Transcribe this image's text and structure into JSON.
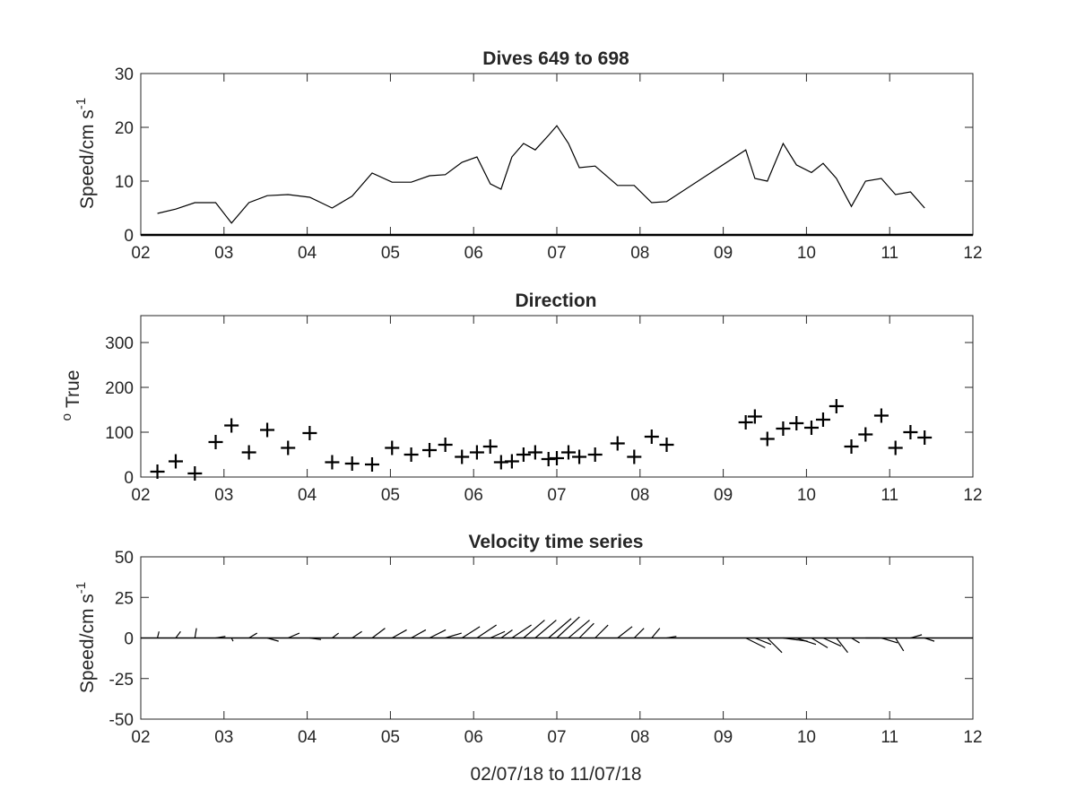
{
  "chart_data": [
    {
      "type": "line",
      "title": "Dives 649 to 698",
      "xlabel": "",
      "ylabel": "Speed/cm s",
      "ylabel_superscript": "-1",
      "xlim": [
        2,
        12
      ],
      "ylim": [
        0,
        30
      ],
      "xticks": [
        2,
        3,
        4,
        5,
        6,
        7,
        8,
        9,
        10,
        11,
        12
      ],
      "xtick_labels": [
        "02",
        "03",
        "04",
        "05",
        "06",
        "07",
        "08",
        "09",
        "10",
        "11",
        "12"
      ],
      "yticks": [
        0,
        10,
        20,
        30
      ],
      "ytick_labels": [
        "0",
        "10",
        "20",
        "30"
      ],
      "grid": false,
      "color": "#000000",
      "series": [
        {
          "x": [
            2.2,
            2.42,
            2.65,
            2.9,
            3.09,
            3.3,
            3.52,
            3.77,
            4.03,
            4.3,
            4.54,
            4.78,
            5.02,
            5.25,
            5.47,
            5.66,
            5.86,
            6.04,
            6.2,
            6.33,
            6.46,
            6.6,
            6.74,
            6.9,
            7.0,
            7.14,
            7.27,
            7.46,
            7.73,
            7.93,
            8.14,
            8.32,
            9.27,
            9.38,
            9.53,
            9.72,
            9.88,
            10.06,
            10.2,
            10.36,
            10.54,
            10.71,
            10.9,
            11.07,
            11.25,
            11.42
          ],
          "y": [
            4,
            4.8,
            6,
            6,
            2.2,
            6,
            7.3,
            7.5,
            7,
            5,
            7.2,
            11.5,
            9.8,
            9.8,
            11,
            11.2,
            13.5,
            14.5,
            9.5,
            8.5,
            14.5,
            17,
            15.8,
            18.5,
            20.3,
            17,
            12.5,
            12.8,
            9.2,
            9.2,
            6,
            6.2,
            15.8,
            10.5,
            10,
            17,
            13,
            11.6,
            13.3,
            10.5,
            5.3,
            10,
            10.5,
            7.5,
            8,
            5
          ]
        }
      ]
    },
    {
      "type": "scatter",
      "title": "Direction",
      "xlabel": "",
      "ylabel": "True",
      "ylabel_prefix_superscript": "o",
      "xlim": [
        2,
        12
      ],
      "ylim": [
        0,
        360
      ],
      "xticks": [
        2,
        3,
        4,
        5,
        6,
        7,
        8,
        9,
        10,
        11,
        12
      ],
      "xtick_labels": [
        "02",
        "03",
        "04",
        "05",
        "06",
        "07",
        "08",
        "09",
        "10",
        "11",
        "12"
      ],
      "yticks": [
        0,
        100,
        200,
        300
      ],
      "ytick_labels": [
        "0",
        "100",
        "200",
        "300"
      ],
      "grid": false,
      "marker": "+",
      "color": "#000000",
      "series": [
        {
          "x": [
            2.2,
            2.42,
            2.65,
            2.9,
            3.09,
            3.3,
            3.52,
            3.77,
            4.03,
            4.3,
            4.54,
            4.78,
            5.02,
            5.25,
            5.47,
            5.66,
            5.86,
            6.04,
            6.2,
            6.33,
            6.46,
            6.6,
            6.74,
            6.9,
            7.0,
            7.14,
            7.27,
            7.46,
            7.73,
            7.93,
            8.14,
            8.32,
            9.27,
            9.38,
            9.53,
            9.72,
            9.88,
            10.06,
            10.2,
            10.36,
            10.54,
            10.71,
            10.9,
            11.07,
            11.25,
            11.42
          ],
          "y": [
            12,
            35,
            8,
            78,
            115,
            55,
            105,
            65,
            98,
            33,
            30,
            28,
            65,
            50,
            60,
            72,
            45,
            55,
            68,
            33,
            35,
            50,
            55,
            40,
            42,
            55,
            45,
            50,
            75,
            45,
            90,
            72,
            122,
            135,
            85,
            108,
            120,
            110,
            128,
            158,
            68,
            95,
            137,
            65,
            100,
            88
          ]
        }
      ]
    },
    {
      "type": "quiver",
      "title": "Velocity time series",
      "xlabel": "02/07/18 to 11/07/18",
      "ylabel": "Speed/cm s",
      "ylabel_superscript": "-1",
      "xlim": [
        2,
        12
      ],
      "ylim": [
        -50,
        50
      ],
      "xticks": [
        2,
        3,
        4,
        5,
        6,
        7,
        8,
        9,
        10,
        11,
        12
      ],
      "xtick_labels": [
        "02",
        "03",
        "04",
        "05",
        "06",
        "07",
        "08",
        "09",
        "10",
        "11",
        "12"
      ],
      "yticks": [
        -50,
        -25,
        0,
        25,
        50
      ],
      "ytick_labels": [
        "-50",
        "-25",
        "0",
        "25",
        "50"
      ],
      "grid": false,
      "color": "#000000",
      "sticks": [
        {
          "x": 2.2,
          "u": 1,
          "v": 4
        },
        {
          "x": 2.42,
          "u": 3,
          "v": 4
        },
        {
          "x": 2.65,
          "u": 1,
          "v": 6
        },
        {
          "x": 2.9,
          "u": 6,
          "v": 1
        },
        {
          "x": 3.09,
          "u": 1,
          "v": -2
        },
        {
          "x": 3.3,
          "u": 5,
          "v": 3
        },
        {
          "x": 3.52,
          "u": 7,
          "v": -2
        },
        {
          "x": 3.77,
          "u": 7,
          "v": 3
        },
        {
          "x": 4.03,
          "u": 7,
          "v": -1
        },
        {
          "x": 4.3,
          "u": 4,
          "v": 3
        },
        {
          "x": 4.54,
          "u": 6,
          "v": 4
        },
        {
          "x": 4.78,
          "u": 8,
          "v": 6
        },
        {
          "x": 5.02,
          "u": 9,
          "v": 5
        },
        {
          "x": 5.25,
          "u": 9,
          "v": 5
        },
        {
          "x": 5.47,
          "u": 10,
          "v": 5
        },
        {
          "x": 5.66,
          "u": 10,
          "v": 3
        },
        {
          "x": 5.86,
          "u": 11,
          "v": 7
        },
        {
          "x": 6.04,
          "u": 12,
          "v": 8
        },
        {
          "x": 6.2,
          "u": 9,
          "v": 4
        },
        {
          "x": 6.33,
          "u": 7,
          "v": 5
        },
        {
          "x": 6.46,
          "u": 12,
          "v": 8
        },
        {
          "x": 6.6,
          "u": 13,
          "v": 11
        },
        {
          "x": 6.74,
          "u": 13,
          "v": 11
        },
        {
          "x": 6.9,
          "u": 14,
          "v": 12
        },
        {
          "x": 7.0,
          "u": 14,
          "v": 13
        },
        {
          "x": 7.14,
          "u": 13,
          "v": 11
        },
        {
          "x": 7.27,
          "u": 9,
          "v": 9
        },
        {
          "x": 7.46,
          "u": 8,
          "v": 8
        },
        {
          "x": 7.73,
          "u": 9,
          "v": 7
        },
        {
          "x": 7.93,
          "u": 6,
          "v": 6
        },
        {
          "x": 8.14,
          "u": 5,
          "v": 6
        },
        {
          "x": 8.32,
          "u": 6,
          "v": 1
        },
        {
          "x": 9.27,
          "u": 12,
          "v": -6
        },
        {
          "x": 9.38,
          "u": 10,
          "v": -4
        },
        {
          "x": 9.53,
          "u": 9,
          "v": -9
        },
        {
          "x": 9.72,
          "u": 15,
          "v": -2
        },
        {
          "x": 9.88,
          "u": 12,
          "v": -4
        },
        {
          "x": 10.06,
          "u": 10,
          "v": -6
        },
        {
          "x": 10.2,
          "u": 11,
          "v": -5
        },
        {
          "x": 10.36,
          "u": 7,
          "v": -9
        },
        {
          "x": 10.54,
          "u": 5,
          "v": -3
        },
        {
          "x": 10.71,
          "u": 9,
          "v": 0
        },
        {
          "x": 10.9,
          "u": 10,
          "v": -3
        },
        {
          "x": 11.07,
          "u": 5,
          "v": -8
        },
        {
          "x": 11.25,
          "u": 7,
          "v": 2
        },
        {
          "x": 11.42,
          "u": 6,
          "v": -2
        }
      ]
    }
  ]
}
